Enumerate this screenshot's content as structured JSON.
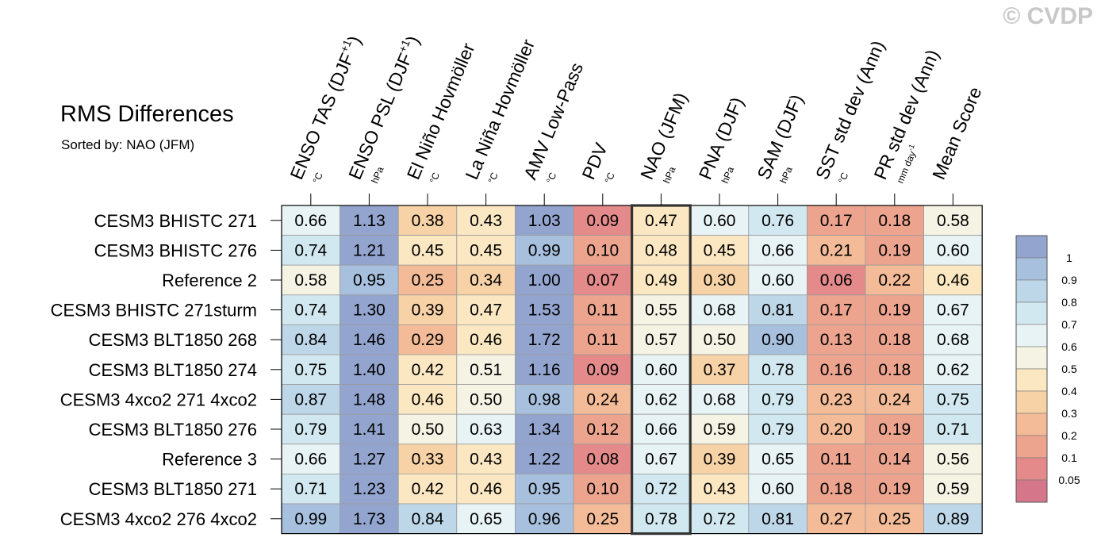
{
  "watermark": "© CVDP",
  "chart_data": {
    "type": "heatmap",
    "title": "RMS Differences",
    "subtitle": "Sorted by: NAO (JFM)",
    "highlight_column": "NAO (JFM)",
    "columns": [
      {
        "name": "ENSO TAS (DJF",
        "sup": "+1",
        "close": ")",
        "unit": "°C"
      },
      {
        "name": "ENSO PSL (DJF",
        "sup": "+1",
        "close": ")",
        "unit": "hPa"
      },
      {
        "name": "El Niño Hovmöller",
        "unit": "°C"
      },
      {
        "name": "La Niña Hovmöller",
        "unit": "°C"
      },
      {
        "name": "AMV Low-Pass",
        "unit": "°C"
      },
      {
        "name": "PDV",
        "unit": "°C"
      },
      {
        "name": "NAO (JFM)",
        "unit": "hPa"
      },
      {
        "name": "PNA (DJF)",
        "unit": "hPa"
      },
      {
        "name": "SAM (DJF)",
        "unit": "hPa"
      },
      {
        "name": "SST std dev (Ann)",
        "unit": "°C"
      },
      {
        "name": "PR std dev (Ann)",
        "unit": "mm day",
        "unit_sup": "-1"
      },
      {
        "name": "Mean Score",
        "unit": ""
      }
    ],
    "rows": [
      {
        "name": "CESM3 BHISTC 271",
        "values": [
          0.66,
          1.13,
          0.38,
          0.43,
          1.03,
          0.09,
          0.47,
          0.6,
          0.76,
          0.17,
          0.18,
          0.58
        ]
      },
      {
        "name": "CESM3 BHISTC 276",
        "values": [
          0.74,
          1.21,
          0.45,
          0.45,
          0.99,
          0.1,
          0.48,
          0.45,
          0.66,
          0.21,
          0.19,
          0.6
        ]
      },
      {
        "name": "Reference 2",
        "values": [
          0.58,
          0.95,
          0.25,
          0.34,
          1.0,
          0.07,
          0.49,
          0.3,
          0.6,
          0.06,
          0.22,
          0.46
        ]
      },
      {
        "name": "CESM3 BHISTC 271sturm",
        "values": [
          0.74,
          1.3,
          0.39,
          0.47,
          1.53,
          0.11,
          0.55,
          0.68,
          0.81,
          0.17,
          0.19,
          0.67
        ]
      },
      {
        "name": "CESM3 BLT1850 268",
        "values": [
          0.84,
          1.46,
          0.29,
          0.46,
          1.72,
          0.11,
          0.57,
          0.5,
          0.9,
          0.13,
          0.18,
          0.68
        ]
      },
      {
        "name": "CESM3 BLT1850 274",
        "values": [
          0.75,
          1.4,
          0.42,
          0.51,
          1.16,
          0.09,
          0.6,
          0.37,
          0.78,
          0.16,
          0.18,
          0.62
        ]
      },
      {
        "name": "CESM3 4xco2 271 4xco2",
        "values": [
          0.87,
          1.48,
          0.46,
          0.5,
          0.98,
          0.24,
          0.62,
          0.68,
          0.79,
          0.23,
          0.24,
          0.75
        ]
      },
      {
        "name": "CESM3 BLT1850 276",
        "values": [
          0.79,
          1.41,
          0.5,
          0.63,
          1.34,
          0.12,
          0.66,
          0.59,
          0.79,
          0.2,
          0.19,
          0.71
        ]
      },
      {
        "name": "Reference 3",
        "values": [
          0.66,
          1.27,
          0.33,
          0.43,
          1.22,
          0.08,
          0.67,
          0.39,
          0.65,
          0.11,
          0.14,
          0.56
        ]
      },
      {
        "name": "CESM3 BLT1850 271",
        "values": [
          0.71,
          1.23,
          0.42,
          0.46,
          0.95,
          0.1,
          0.72,
          0.43,
          0.6,
          0.18,
          0.19,
          0.59
        ]
      },
      {
        "name": "CESM3 4xco2 276 4xco2",
        "values": [
          0.99,
          1.73,
          0.84,
          0.65,
          0.96,
          0.25,
          0.78,
          0.72,
          0.81,
          0.27,
          0.25,
          0.89
        ]
      }
    ],
    "colorbar": {
      "ticks": [
        "1",
        "0.9",
        "0.8",
        "0.7",
        "0.6",
        "0.5",
        "0.4",
        "0.3",
        "0.2",
        "0.1",
        "0.05"
      ],
      "thresholds": [
        0.05,
        0.1,
        0.2,
        0.3,
        0.4,
        0.5,
        0.6,
        0.7,
        0.8,
        0.9,
        1.0
      ],
      "colors": [
        "#d5768a",
        "#e48a8a",
        "#eda48f",
        "#f3bb97",
        "#f7d2a6",
        "#fbe8c3",
        "#f5f3e4",
        "#e8f3f5",
        "#d2e8f0",
        "#bdd6e8",
        "#a7c0de",
        "#93a5cf"
      ]
    }
  }
}
